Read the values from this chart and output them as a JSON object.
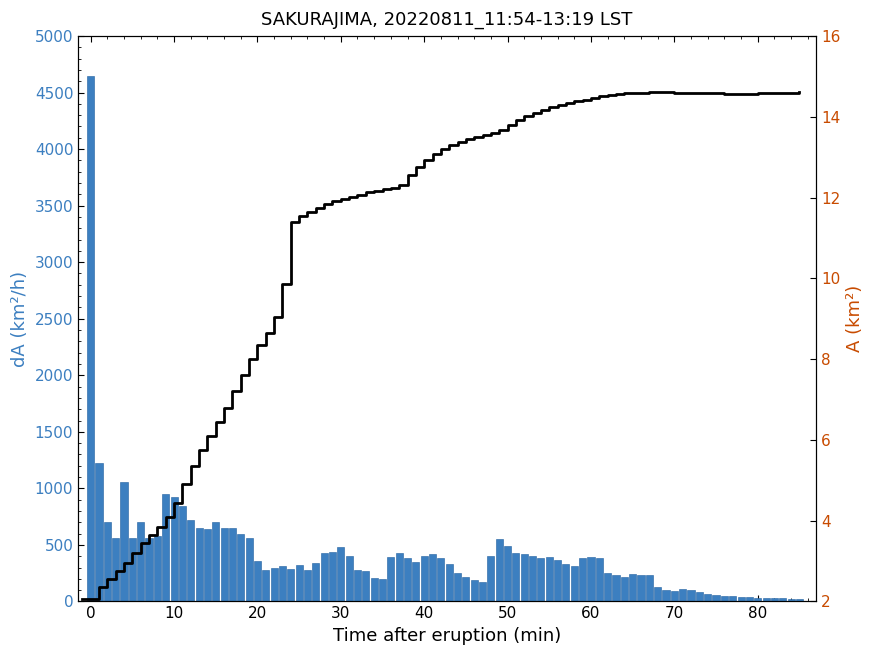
{
  "title": "SAKURAJIMA, 20220811_11:54-13:19 LST",
  "xlabel": "Time after eruption (min)",
  "ylabel_left": "dA (km²/h)",
  "ylabel_right": "A (km²)",
  "bar_color": "#3c7fc0",
  "line_color": "#000000",
  "left_ylabel_color": "#3c7fc0",
  "right_ylabel_color": "#c84b00",
  "ylim_left": [
    0,
    5000
  ],
  "ylim_right": [
    2,
    16
  ],
  "xlim": [
    -1.5,
    87
  ],
  "bar_width": 0.85,
  "bar_x": [
    0,
    1,
    2,
    3,
    4,
    5,
    6,
    7,
    8,
    9,
    10,
    11,
    12,
    13,
    14,
    15,
    16,
    17,
    18,
    19,
    20,
    21,
    22,
    23,
    24,
    25,
    26,
    27,
    28,
    29,
    30,
    31,
    32,
    33,
    34,
    35,
    36,
    37,
    38,
    39,
    40,
    41,
    42,
    43,
    44,
    45,
    46,
    47,
    48,
    49,
    50,
    51,
    52,
    53,
    54,
    55,
    56,
    57,
    58,
    59,
    60,
    61,
    62,
    63,
    64,
    65,
    66,
    67,
    68,
    69,
    70,
    71,
    72,
    73,
    74,
    75,
    76,
    77,
    78,
    79,
    80,
    81,
    82,
    83,
    84,
    85
  ],
  "bar_heights": [
    4650,
    1220,
    700,
    560,
    1060,
    560,
    700,
    560,
    580,
    950,
    920,
    840,
    720,
    650,
    640,
    700,
    650,
    650,
    600,
    560,
    360,
    280,
    300,
    310,
    290,
    320,
    280,
    340,
    430,
    440,
    480,
    400,
    280,
    270,
    210,
    200,
    390,
    430,
    380,
    350,
    400,
    420,
    380,
    330,
    250,
    220,
    190,
    170,
    400,
    550,
    490,
    430,
    420,
    400,
    380,
    390,
    370,
    330,
    310,
    380,
    390,
    380,
    250,
    230,
    220,
    240,
    230,
    230,
    130,
    100,
    90,
    110,
    100,
    80,
    70,
    60,
    50,
    45,
    40,
    38,
    35,
    32,
    30,
    28,
    25,
    22
  ],
  "line_x": [
    -1,
    0,
    1,
    2,
    3,
    4,
    5,
    6,
    7,
    8,
    9,
    10,
    11,
    12,
    13,
    14,
    15,
    16,
    17,
    18,
    19,
    20,
    21,
    22,
    23,
    24,
    25,
    26,
    27,
    28,
    29,
    30,
    31,
    32,
    33,
    34,
    35,
    36,
    37,
    38,
    39,
    40,
    41,
    42,
    43,
    44,
    45,
    46,
    47,
    48,
    49,
    50,
    51,
    52,
    53,
    54,
    55,
    56,
    57,
    58,
    59,
    60,
    61,
    62,
    63,
    64,
    65,
    66,
    67,
    68,
    69,
    70,
    71,
    72,
    73,
    74,
    75,
    76,
    77,
    78,
    79,
    80,
    81,
    82,
    83,
    84,
    85
  ],
  "line_y": [
    2.05,
    2.05,
    2.35,
    2.55,
    2.75,
    2.95,
    3.2,
    3.45,
    3.65,
    3.85,
    4.1,
    4.45,
    4.9,
    5.35,
    5.75,
    6.1,
    6.45,
    6.8,
    7.2,
    7.6,
    8.0,
    8.35,
    8.65,
    9.05,
    9.85,
    11.4,
    11.55,
    11.65,
    11.75,
    11.85,
    11.92,
    11.97,
    12.02,
    12.07,
    12.13,
    12.17,
    12.2,
    12.23,
    12.3,
    12.55,
    12.75,
    12.93,
    13.08,
    13.2,
    13.3,
    13.38,
    13.45,
    13.5,
    13.55,
    13.6,
    13.68,
    13.8,
    13.92,
    14.02,
    14.1,
    14.17,
    14.23,
    14.29,
    14.34,
    14.38,
    14.42,
    14.47,
    14.52,
    14.55,
    14.57,
    14.58,
    14.59,
    14.6,
    14.61,
    14.61,
    14.61,
    14.6,
    14.6,
    14.59,
    14.59,
    14.58,
    14.58,
    14.57,
    14.57,
    14.57,
    14.57,
    14.58,
    14.59,
    14.6,
    14.6,
    14.6,
    14.61
  ],
  "xticks": [
    0,
    10,
    20,
    30,
    40,
    50,
    60,
    70,
    80
  ],
  "yticks_left": [
    0,
    500,
    1000,
    1500,
    2000,
    2500,
    3000,
    3500,
    4000,
    4500,
    5000
  ],
  "yticks_right": [
    2,
    4,
    6,
    8,
    10,
    12,
    14,
    16
  ],
  "title_fontsize": 13,
  "label_fontsize": 13,
  "tick_fontsize": 11
}
